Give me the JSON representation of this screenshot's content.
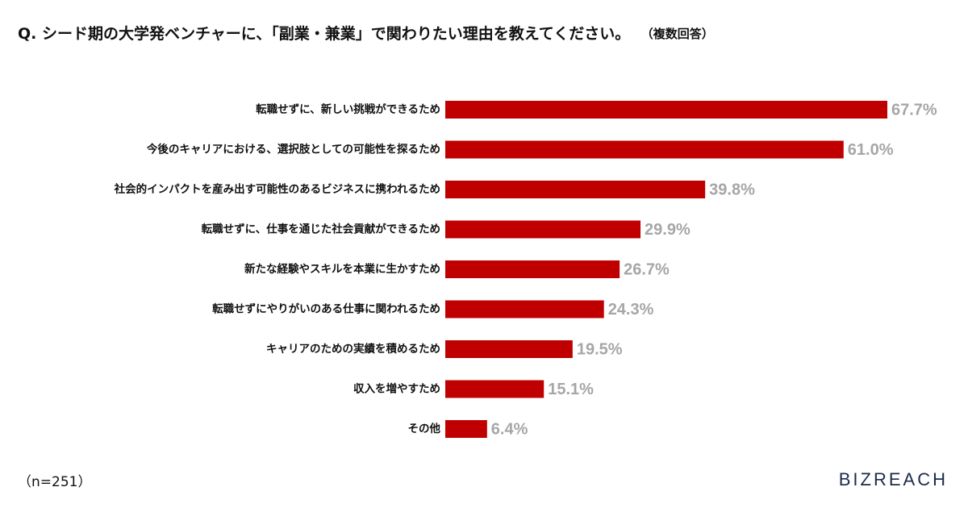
{
  "chart_data": {
    "type": "bar",
    "orientation": "horizontal",
    "title": "Q. シード期の大学発ベンチャーに、「副業・兼業」で関わりたい理由を教えてください。",
    "subtitle": "（複数回答）",
    "categories": [
      "転職せずに、新しい挑戦ができるため",
      "今後のキャリアにおける、選択肢としての可能性を探るため",
      "社会的インパクトを産み出す可能性のあるビジネスに携われるため",
      "転職せずに、仕事を通じた社会貢献ができるため",
      "新たな経験やスキルを本業に生かすため",
      "転職せずにやりがいのある仕事に関われるため",
      "キャリアのための実績を積めるため",
      "収入を増やすため",
      "その他"
    ],
    "values": [
      67.7,
      61.0,
      39.8,
      29.9,
      26.7,
      24.3,
      19.5,
      15.1,
      6.4
    ],
    "value_labels": [
      "67.7%",
      "61.0%",
      "39.8%",
      "29.9%",
      "26.7%",
      "24.3%",
      "19.5%",
      "15.1%",
      "6.4%"
    ],
    "color": "#c00000",
    "note": "（n=251）",
    "brand": "BIZREACH"
  }
}
